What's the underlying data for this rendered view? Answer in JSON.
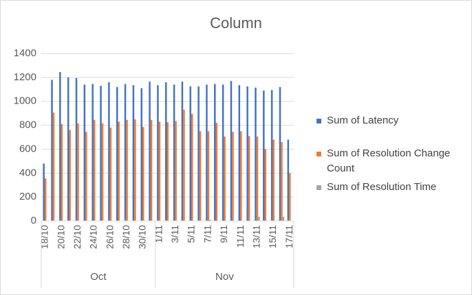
{
  "chart_data": {
    "type": "bar",
    "title": "Column",
    "groups": [
      {
        "label": "Oct",
        "categories": [
          "18/10",
          null,
          "20/10",
          null,
          "22/10",
          null,
          "24/10",
          null,
          "26/10",
          null,
          "28/10",
          null,
          "30/10",
          null
        ]
      },
      {
        "label": "Nov",
        "categories": [
          "1/11",
          null,
          "3/11",
          null,
          "5/11",
          null,
          "7/11",
          null,
          "9/11",
          null,
          "11/11",
          null,
          "13/11",
          null,
          "15/11",
          null,
          "17/11"
        ]
      }
    ],
    "series": [
      {
        "name": "Sum of Latency",
        "color": "#4472c4",
        "values": [
          480,
          1180,
          1245,
          1200,
          1195,
          1140,
          1145,
          1130,
          1160,
          1120,
          1145,
          1135,
          1110,
          1165,
          1135,
          1160,
          1140,
          1165,
          1125,
          1125,
          1140,
          1145,
          1140,
          1170,
          1135,
          1125,
          1115,
          1090,
          1095,
          1120,
          680
        ]
      },
      {
        "name": "Sum of Resolution Change Count",
        "color": "#ed7d31",
        "values": [
          355,
          905,
          810,
          760,
          815,
          745,
          845,
          815,
          780,
          830,
          845,
          850,
          785,
          845,
          830,
          825,
          835,
          930,
          895,
          750,
          750,
          820,
          705,
          745,
          750,
          710,
          705,
          600,
          680,
          660,
          400
        ]
      },
      {
        "name": "Sum of Resolution Time",
        "color": "#a5a5a5",
        "values": [
          0,
          0,
          0,
          0,
          0,
          0,
          0,
          0,
          0,
          0,
          0,
          0,
          0,
          0,
          0,
          0,
          0,
          0,
          0,
          0,
          10,
          0,
          0,
          0,
          0,
          0,
          35,
          0,
          0,
          35,
          0
        ]
      }
    ],
    "ylim": [
      0,
      1400
    ],
    "yticks": [
      0,
      200,
      400,
      600,
      800,
      1000,
      1200,
      1400
    ],
    "grid": true
  }
}
